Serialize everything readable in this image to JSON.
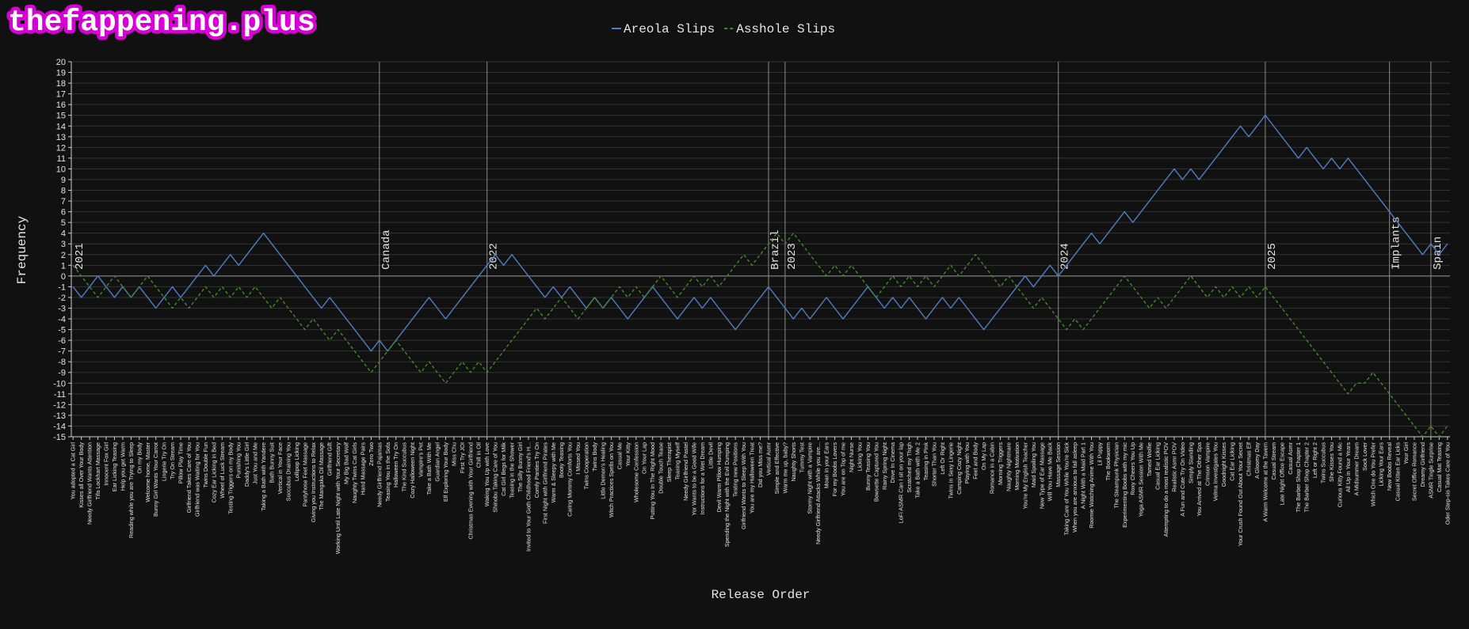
{
  "chart_data": {
    "type": "line",
    "watermark": "thefappening.plus",
    "xlabel": "Release Order",
    "ylabel": "Frequency",
    "ylim": [
      -15,
      20
    ],
    "yticks": [
      -15,
      -14,
      -13,
      -12,
      -11,
      -10,
      -9,
      -8,
      -7,
      -6,
      -5,
      -4,
      -3,
      -2,
      -1,
      0,
      1,
      2,
      3,
      4,
      5,
      6,
      7,
      8,
      9,
      10,
      11,
      12,
      13,
      14,
      15,
      16,
      17,
      18,
      19,
      20
    ],
    "grid": true,
    "legend": "top",
    "categories": [
      "You adopted a Cat Girl",
      "Kisses all Over Your Body",
      "Needy Girlfriend Wants Attention",
      "Tifa Lockhart Massage",
      "Innocent Fox Girl",
      "Ear Licking Teasing",
      "Help you get Warm",
      "Reading while you are Trying to Sleep",
      "On my Body",
      "Welcome home, Master",
      "Bunny Girl Wants Your Carrot",
      "Lingerie Try On",
      "Try On Stream",
      "Pillow Play Time",
      "Girlfriend Takes Care of You",
      "Girlfriend was Waiting for You",
      "Twins Double Fun",
      "Cozy Ear Licking in Bed",
      "Wheel of Luck Stream",
      "Testing Triggers on my Body",
      "Punishing You",
      "Daddy's Little Girl",
      "Just You and Me",
      "Taking a Bath with Yandere",
      "Bath Bunny Suit",
      "Vertical in Your Face",
      "Succubus Draining You",
      "Lollipop Licking",
      "Pantyhose Feet Massage",
      "Giving you Instructions to Relax",
      "The Mangaka Oil Massage",
      "Girlfriend Gift",
      "Working Until Late Night with Your Secretary",
      "My Big Bad Wolf",
      "Naughty Twins Cat Girls",
      "Hand Massage Pairs",
      "Zero Two",
      "Needy Girlfriend Pajamas",
      "Teasing You in the Sofa",
      "Halloween Try On",
      "The Kind Succubus",
      "Cozy Halloween Night",
      "Vampire's Pet",
      "Take a Bath With Me",
      "Guardian Angel",
      "Elf Exploring Your Body",
      "Miss Chu",
      "First Try JOI",
      "Christmas Evening with Your Girlfriend",
      "Chill in Oil",
      "Waking You Up with Love",
      "Shinobu Taking Care of You",
      "Cat Girl Begs for Milk",
      "Teasing in the Shower",
      "The Silly Bunny Girl",
      "Invited to Your Goth Childhood Friend's H...",
      "Comfy Panties Try On",
      "First Night with Girlfriend Pirates",
      "Warm & Sleepy with Me",
      "Booty Teasing",
      "Caring Mommy Comforts You",
      "I Missed You",
      "Twins Cooperation",
      "Twins Body",
      "Little Demon's Healing",
      "Witch Practices Spells on You",
      "Casual Me",
      "Your Kitty",
      "Wholesome Confession",
      "On Your Lap",
      "Putting You In The Right Mood",
      "Double Touch Tease",
      "Sleep Therapist",
      "Teasing Myself",
      "Needy Girlfriend Pastel",
      "Yor Wants to be a Good Wife",
      "Instructions for a Wet Dream",
      "Little Devil",
      "Devil Warm Pillow Humping",
      "Spending the Night with the Evil Dumping",
      "Testing new Positions",
      "Girlfriend Wants to Sleep With You",
      "You are my Halloween Treat",
      "Did you Miss me?",
      "Vertical Asmr",
      "Simple and Effective",
      "Warm me up, baby?",
      "Naughty Shorts",
      "Tummy Test",
      "Stormy Night with a Vampire",
      "Needy Girlfriend Attacks While you are...",
      "Moan in your Ears",
      "For my Boobs Lovers",
      "You are on Top of me",
      "Night Nurse",
      "Licking You",
      "Bunny Teasing You",
      "Bowsette Captured You",
      "Rainy Spring Night",
      "Drive In Cinema",
      "LoFi ASMR Can I sit on your lap",
      "Scratched my Thigh",
      "Take a Bath with Me 2",
      "Teasing in Pink",
      "Shorter Than You",
      "Left Or Right",
      "Twins in Sexy Lingerie",
      "Camping Cozy Night",
      "Playing with You",
      "Feet and Body",
      "On My Lap",
      "Romance in a Cabin",
      "Morning Triggers",
      "Naughty Nightmare",
      "Morning Motivation",
      "You're My English Teacher",
      "Maid Spoiling You",
      "New Type of Ear Massage",
      "Will You Have Me Back",
      "Massage Session",
      "Taking Care of You While You're Sick",
      "When you are anxious to fall asleep",
      "A Night With a Maid Part 1",
      "Roomie Watching Anime With You",
      "Lil Puppy",
      "The Bookworm",
      "The Steampunk Physician",
      "Experimenting Boobs with my mic",
      "Roxy Cheers You Up",
      "Yoga ASMR Session With Me",
      "Tamed Wolfie",
      "Casual Ear Licking",
      "Attempting to do a most realistic POV",
      "Realistic Asmr POV",
      "A Fun and Cute Try On Video",
      "Simply Standing",
      "You Arrived at The Other Spa",
      "Crimson Vampire",
      "Velma Investigates You",
      "Goodnight Kisses",
      "Cat Ear Licking",
      "Your Crush Found Out About Your Secret",
      "Christmas Elf",
      "A Gloomy Day",
      "A Warm Welcome at the Tavern",
      "Casual Stream",
      "Late Night Office Escape",
      "Casual Asmr",
      "The Barber Shop Chapter 1",
      "The Barber Shop Chapter 2",
      "Left or Right 2",
      "Twins Succubus",
      "She Kisses You",
      "Curious Kitty Found a Mic",
      "All Up in Your Years",
      "A Midsummer Dream",
      "Sock Lover",
      "Which One do You Prefer",
      "Licking Your Ears",
      "New Boobs Reveal",
      "Casual Kitten Ear Licks",
      "Your Girl",
      "Secret Office Romance",
      "Dreamy Girlfriend",
      "ASMR Tingle Surprise",
      "Casual Mat Teasing",
      "Oder Step-sis Takes Care of You"
    ],
    "series": [
      {
        "name": "Areola Slips",
        "color": "#4f7ec4",
        "dash": "solid",
        "values": [
          -1,
          -2,
          -1,
          0,
          -1,
          -2,
          -1,
          -2,
          -1,
          -2,
          -3,
          -2,
          -1,
          -2,
          -1,
          0,
          1,
          0,
          1,
          2,
          1,
          2,
          3,
          4,
          3,
          2,
          1,
          0,
          -1,
          -2,
          -3,
          -2,
          -3,
          -4,
          -5,
          -6,
          -7,
          -6,
          -7,
          -6,
          -5,
          -4,
          -3,
          -2,
          -3,
          -4,
          -3,
          -2,
          -1,
          0,
          1,
          2,
          1,
          2,
          1,
          0,
          -1,
          -2,
          -1,
          -2,
          -1,
          -2,
          -3,
          -2,
          -3,
          -2,
          -3,
          -4,
          -3,
          -2,
          -1,
          -2,
          -3,
          -4,
          -3,
          -2,
          -3,
          -2,
          -3,
          -4,
          -5,
          -4,
          -3,
          -2,
          -1,
          -2,
          -3,
          -4,
          -3,
          -4,
          -3,
          -2,
          -3,
          -4,
          -3,
          -2,
          -1,
          -2,
          -3,
          -2,
          -3,
          -2,
          -3,
          -4,
          -3,
          -2,
          -3,
          -2,
          -3,
          -4,
          -5,
          -4,
          -3,
          -2,
          -1,
          0,
          -1,
          0,
          1,
          0,
          1,
          2,
          3,
          4,
          3,
          4,
          5,
          6,
          5,
          6,
          7,
          8,
          9,
          10,
          9,
          10,
          9,
          10,
          11,
          12,
          13,
          14,
          13,
          14,
          15,
          14,
          13,
          12,
          11,
          12,
          11,
          10,
          11,
          10,
          11,
          10,
          9,
          8,
          7,
          6,
          5,
          4,
          3,
          2,
          3,
          2,
          3
        ]
      },
      {
        "name": "Asshole Slips",
        "color": "#3f8a2a",
        "dash": "dashed",
        "values": [
          1,
          0,
          -1,
          -2,
          -1,
          0,
          -1,
          -2,
          -1,
          0,
          -1,
          -2,
          -3,
          -2,
          -3,
          -2,
          -1,
          -2,
          -1,
          -2,
          -1,
          -2,
          -1,
          -2,
          -3,
          -2,
          -3,
          -4,
          -5,
          -4,
          -5,
          -6,
          -5,
          -6,
          -7,
          -8,
          -9,
          -8,
          -7,
          -6,
          -7,
          -8,
          -9,
          -8,
          -9,
          -10,
          -9,
          -8,
          -9,
          -8,
          -9,
          -8,
          -7,
          -6,
          -5,
          -4,
          -3,
          -4,
          -3,
          -2,
          -3,
          -4,
          -3,
          -2,
          -3,
          -2,
          -1,
          -2,
          -1,
          -2,
          -1,
          0,
          -1,
          -2,
          -1,
          0,
          -1,
          0,
          -1,
          0,
          1,
          2,
          1,
          2,
          3,
          4,
          3,
          4,
          3,
          2,
          1,
          0,
          1,
          0,
          1,
          0,
          -1,
          -2,
          -1,
          0,
          -1,
          0,
          -1,
          0,
          -1,
          0,
          1,
          0,
          1,
          2,
          1,
          0,
          -1,
          0,
          -1,
          -2,
          -3,
          -2,
          -3,
          -4,
          -5,
          -4,
          -5,
          -4,
          -3,
          -2,
          -1,
          0,
          -1,
          -2,
          -3,
          -2,
          -3,
          -2,
          -1,
          0,
          -1,
          -2,
          -1,
          -2,
          -1,
          -2,
          -1,
          -2,
          -1,
          -2,
          -3,
          -4,
          -5,
          -6,
          -7,
          -8,
          -9,
          -10,
          -11,
          -10,
          -10,
          -9,
          -10,
          -11,
          -12,
          -13,
          -14,
          -15,
          -14,
          -15,
          -14
        ]
      }
    ],
    "annotations": [
      {
        "text": "2021",
        "category": "You adopted a Cat Girl"
      },
      {
        "text": "Canada",
        "category": "Needy Girlfriend Pajamas"
      },
      {
        "text": "2022",
        "category": "Waking You Up with Love"
      },
      {
        "text": "Brazil",
        "category": "Vertical Asmr"
      },
      {
        "text": "2023",
        "category": "Warm me up, baby?"
      },
      {
        "text": "2024",
        "category": "Massage Session"
      },
      {
        "text": "2025",
        "category": "A Warm Welcome at the Tavern"
      },
      {
        "text": "Implants",
        "category": "New Boobs Reveal"
      },
      {
        "text": "Spain",
        "category": "ASMR Tingle Surprise"
      }
    ]
  }
}
